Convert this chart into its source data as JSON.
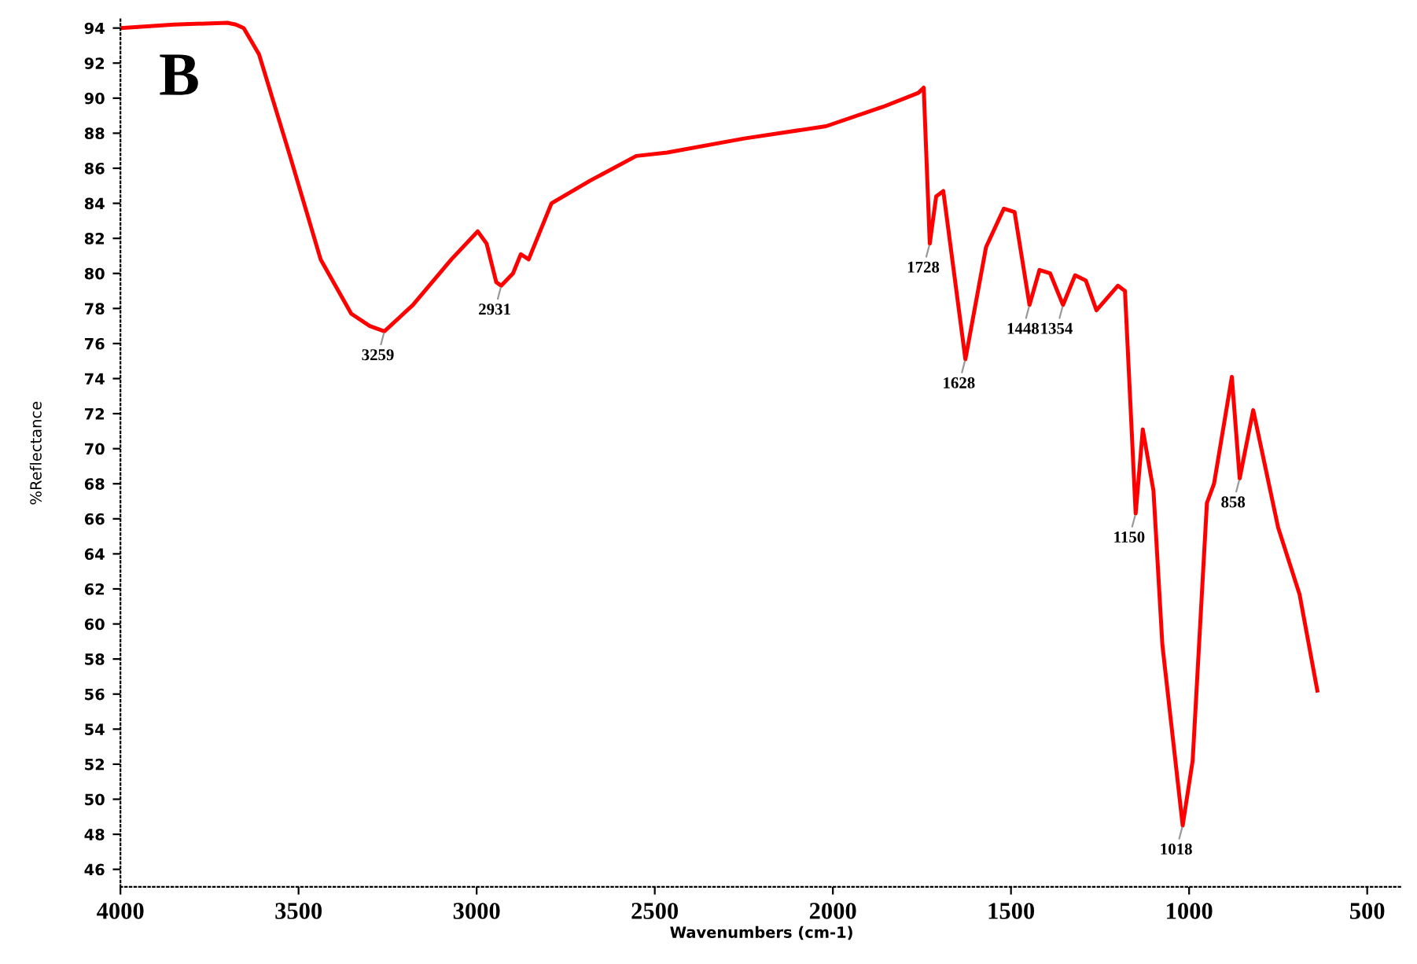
{
  "chart_data": {
    "type": "line",
    "xlabel": "Wavenumbers (cm-1)",
    "ylabel": "%Reflectance",
    "xlim": [
      4000,
      400
    ],
    "xticks": [
      4000,
      3500,
      3000,
      2500,
      2000,
      1500,
      1000,
      500
    ],
    "ylim": [
      45,
      94.5
    ],
    "yticks": [
      46,
      48,
      50,
      52,
      54,
      56,
      58,
      60,
      62,
      64,
      66,
      68,
      70,
      72,
      74,
      76,
      78,
      80,
      82,
      84,
      86,
      88,
      90,
      92,
      94
    ],
    "grid": false,
    "marker": "none",
    "line_style": "solid",
    "series": [
      {
        "color": "#ff0000",
        "x": [
          4000,
          3850,
          3700,
          3676,
          3654,
          3611,
          3524,
          3438,
          3352,
          3300,
          3259,
          3179,
          3071,
          2997,
          2972,
          2945,
          2931,
          2898,
          2876,
          2854,
          2790,
          2681,
          2552,
          2465,
          2249,
          2019,
          1860,
          1760,
          1745,
          1728,
          1710,
          1690,
          1628,
          1570,
          1520,
          1490,
          1448,
          1420,
          1390,
          1354,
          1320,
          1290,
          1260,
          1200,
          1180,
          1150,
          1130,
          1100,
          1075,
          1018,
          990,
          950,
          930,
          880,
          858,
          820,
          750,
          690,
          640
        ],
        "values": [
          94,
          94.2,
          94.3,
          94.2,
          94,
          92.5,
          86.7,
          80.8,
          77.7,
          77.0,
          76.7,
          78.2,
          80.8,
          82.4,
          81.7,
          79.5,
          79.3,
          80,
          81.1,
          80.8,
          84,
          85.3,
          86.7,
          86.9,
          87.7,
          88.4,
          89.5,
          90.3,
          90.6,
          81.7,
          84.4,
          84.7,
          75.1,
          81.5,
          83.7,
          83.5,
          78.2,
          80.2,
          80.0,
          78.2,
          79.9,
          79.6,
          77.9,
          79.3,
          79.0,
          66.3,
          71.1,
          67.6,
          58.8,
          48.5,
          52.2,
          66.9,
          68,
          74.1,
          68.3,
          72.2,
          65.5,
          61.7,
          56.2
        ]
      }
    ],
    "annotations": [
      "B",
      {
        "text": "3259",
        "x": 3259,
        "y": 76.7
      },
      {
        "text": "2931",
        "x": 2931,
        "y": 79.3
      },
      {
        "text": "1728",
        "x": 1728,
        "y": 81.7
      },
      {
        "text": "1628",
        "x": 1628,
        "y": 75.1
      },
      {
        "text": "1448",
        "x": 1448,
        "y": 78.2
      },
      {
        "text": "1354",
        "x": 1354,
        "y": 78.2
      },
      {
        "text": "1150",
        "x": 1150,
        "y": 66.3
      },
      {
        "text": "1018",
        "x": 1018,
        "y": 48.5
      },
      {
        "text": "858",
        "x": 858,
        "y": 68.3
      }
    ]
  }
}
